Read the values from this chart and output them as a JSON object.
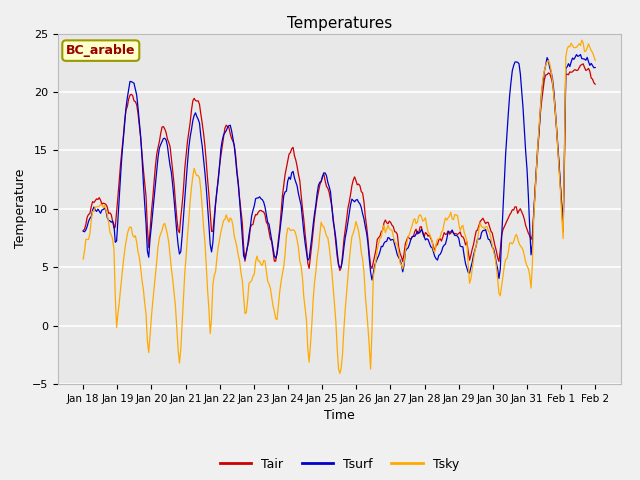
{
  "title": "Temperatures",
  "xlabel": "Time",
  "ylabel": "Temperature",
  "ylim": [
    -5,
    25
  ],
  "yticks": [
    -5,
    0,
    5,
    10,
    15,
    20,
    25
  ],
  "x_labels": [
    "Jan 18",
    "Jan 19",
    "Jan 20",
    "Jan 21",
    "Jan 22",
    "Jan 23",
    "Jan 24",
    "Jan 25",
    "Jan 26",
    "Jan 27",
    "Jan 28",
    "Jan 29",
    "Jan 30",
    "Jan 31",
    "Feb 1",
    "Feb 2"
  ],
  "legend_labels": [
    "Tair",
    "Tsurf",
    "Tsky"
  ],
  "legend_colors": [
    "#cc0000",
    "#0000cc",
    "#ffaa00"
  ],
  "line_colors": {
    "tair": "#cc0000",
    "tsurf": "#0000cc",
    "tsky": "#ffaa00"
  },
  "text_box": "BC_arable",
  "text_box_color": "#990000",
  "text_box_bg": "#ffffcc",
  "text_box_edge": "#999900",
  "fig_bg": "#f0f0f0",
  "plot_bg": "#e8e8e8",
  "grid_color": "#ffffff"
}
